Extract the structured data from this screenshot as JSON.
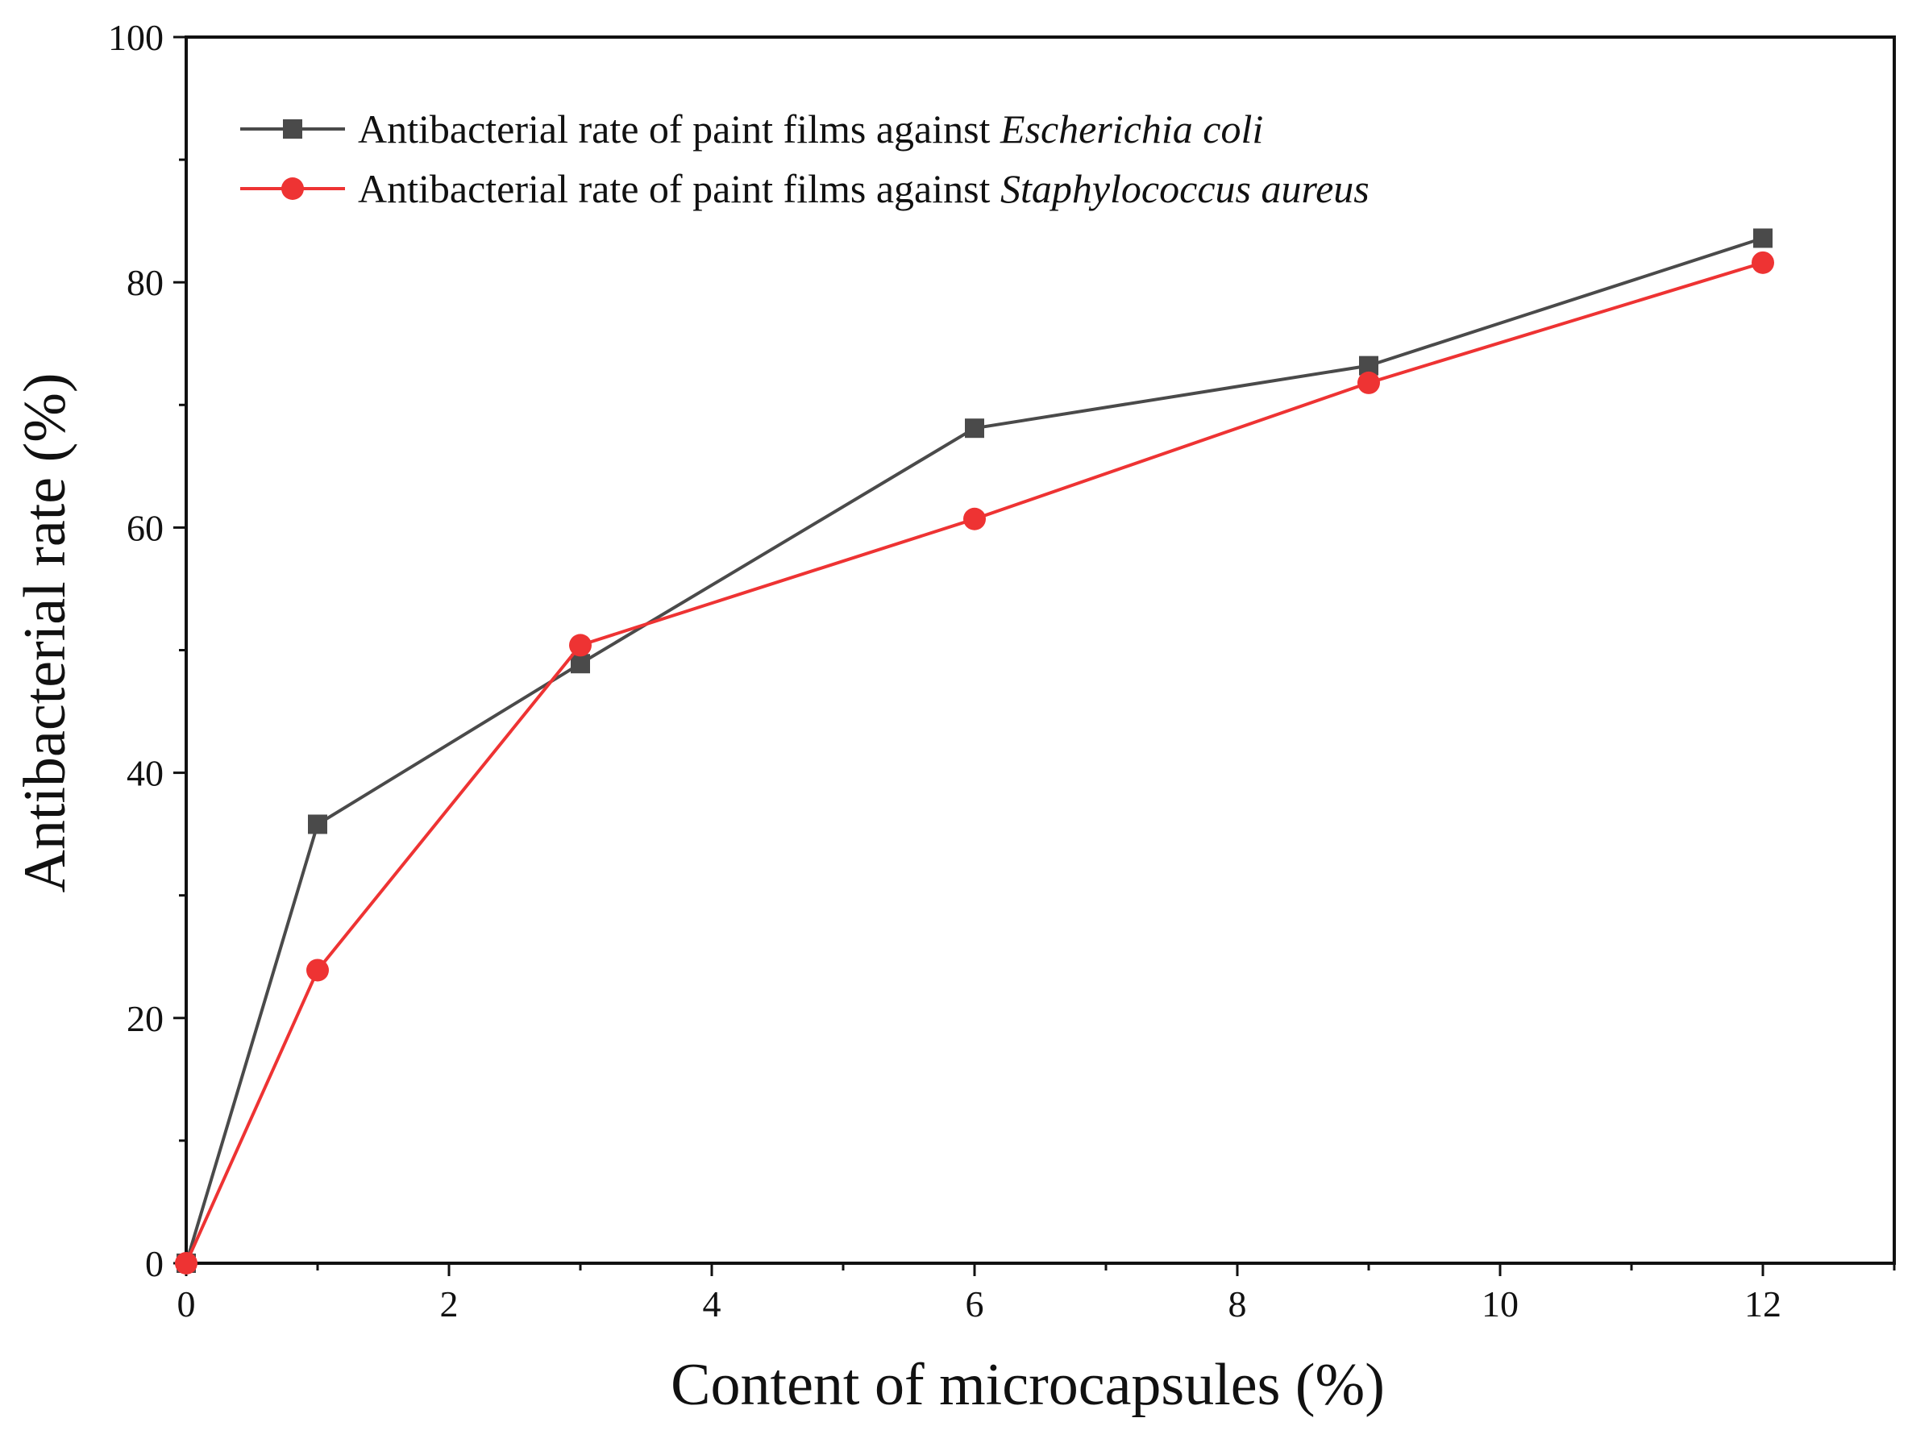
{
  "chart_data": {
    "type": "line",
    "title": "",
    "xlabel": "Content of microcapsules (%)",
    "ylabel": "Antibacterial rate (%)",
    "xlim": [
      0,
      13
    ],
    "ylim": [
      0,
      100
    ],
    "xticks": [
      0,
      2,
      4,
      6,
      8,
      10,
      12
    ],
    "yticks": [
      0,
      20,
      40,
      60,
      80,
      100
    ],
    "x": [
      0,
      1,
      3,
      6,
      9,
      12
    ],
    "grid": false,
    "legend_position": "top-left",
    "series": [
      {
        "name": "Antibacterial rate of paint films against Escherichia coli",
        "legend_prefix": "Antibacterial rate of paint films against ",
        "legend_species": "Escherichia coli",
        "marker": "square",
        "color": "#4a4a4a",
        "values": [
          0,
          35.8,
          48.9,
          68.1,
          73.2,
          83.6
        ]
      },
      {
        "name": "Antibacterial rate of paint films against Staphylococcus aureus",
        "legend_prefix": "Antibacterial rate of paint films against ",
        "legend_species": "Staphylococcus aureus",
        "marker": "circle",
        "color": "#ee3333",
        "values": [
          0,
          23.9,
          50.4,
          60.7,
          71.8,
          81.6
        ]
      }
    ]
  }
}
